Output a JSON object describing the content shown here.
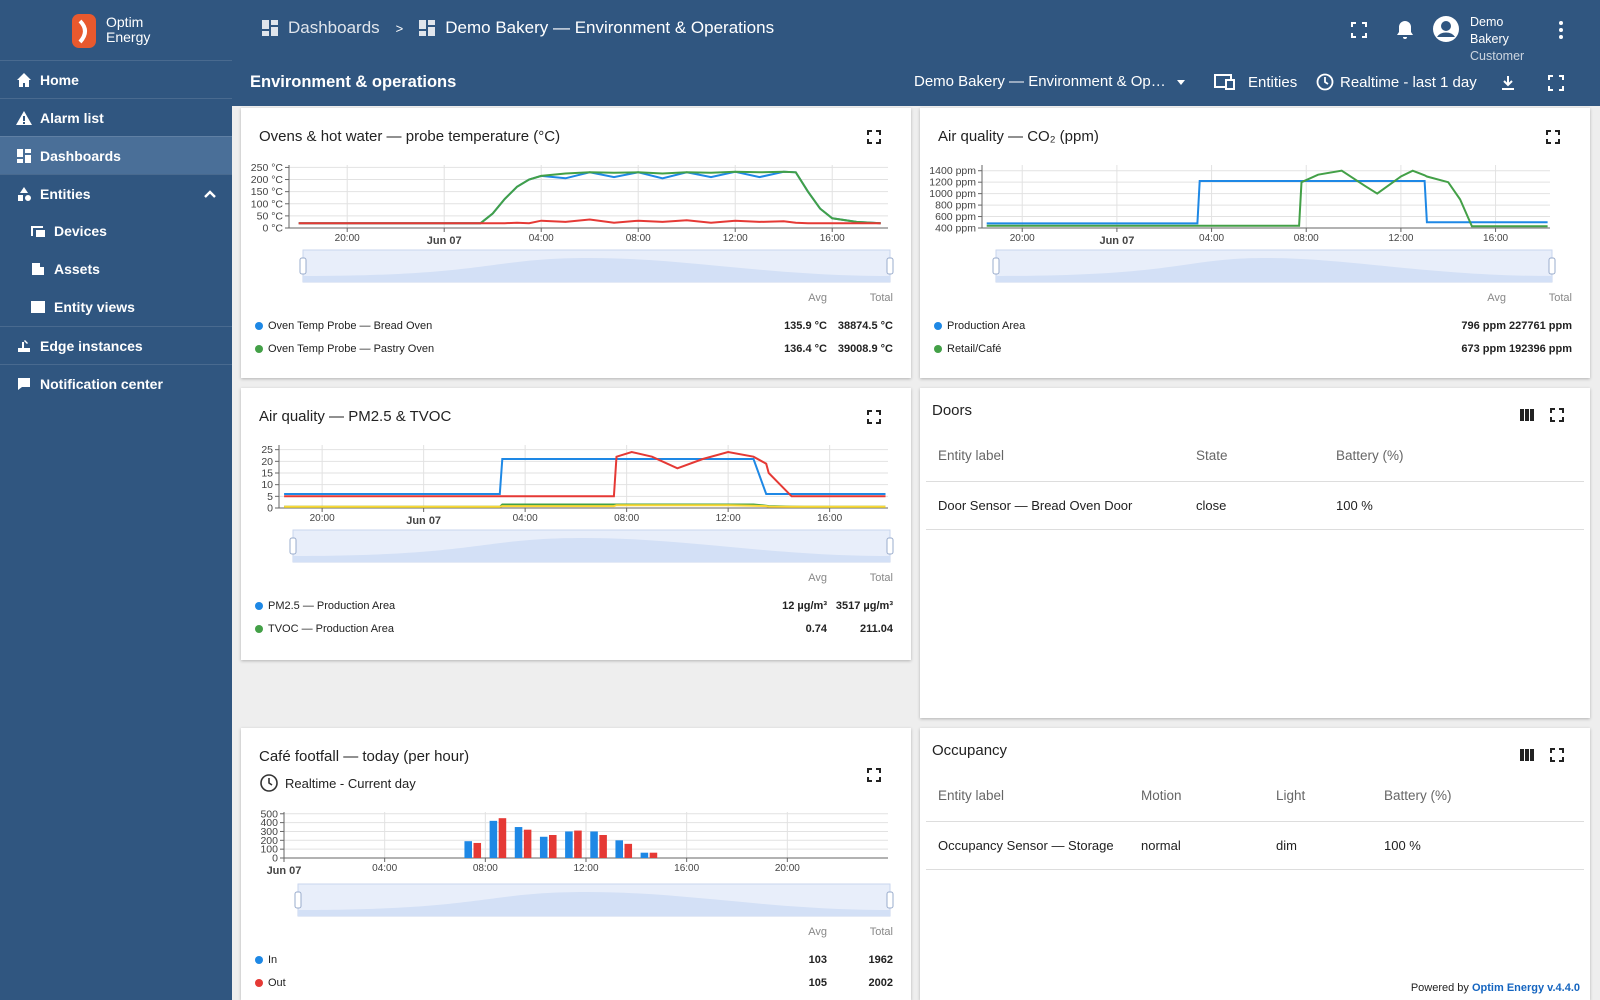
{
  "sidebar": {
    "logo_line1": "Optim",
    "logo_line2": "Energy",
    "menu": [
      "Home",
      "Alarm list",
      "Dashboards",
      "Entities",
      "Devices",
      "Assets",
      "Entity views",
      "Edge instances",
      "Notification center"
    ]
  },
  "header": {
    "breadcrumb": [
      "Dashboards",
      ">",
      "Demo Bakery — Environment & Operations"
    ],
    "user_name": "Demo Bakery",
    "user_role": "Customer"
  },
  "toolbar": {
    "title": "Environment & operations",
    "state": "Demo Bakery — Environment & Op…",
    "entities": "Entities",
    "timewindow": "Realtime - last 1 day"
  },
  "chart_data": [
    {
      "type": "line",
      "title": "Ovens & hot water — probe temperature (°C)",
      "avg_label": "Avg",
      "total_label": "Total",
      "x": [
        -6,
        -4,
        -2,
        0,
        1.5,
        2,
        2.5,
        3,
        3.5,
        4,
        5,
        6,
        7,
        8,
        9,
        10,
        11,
        12,
        13,
        14,
        14.5,
        15,
        15.5,
        16,
        17,
        18
      ],
      "xlim": [
        -6.4,
        18.3
      ],
      "xticks": [
        {
          "value": -4,
          "label": "20:00"
        },
        {
          "value": 0,
          "label": "Jun 07"
        },
        {
          "value": 4,
          "label": "04:00"
        },
        {
          "value": 8,
          "label": "08:00"
        },
        {
          "value": 12,
          "label": "12:00"
        },
        {
          "value": 16,
          "label": "16:00"
        }
      ],
      "ylim": [
        0,
        260
      ],
      "yticks": [
        {
          "value": 0,
          "label": "0 °C"
        },
        {
          "value": 50,
          "label": "50 °C"
        },
        {
          "value": 100,
          "label": "100 °C"
        },
        {
          "value": 150,
          "label": "150 °C"
        },
        {
          "value": 200,
          "label": "200 °C"
        },
        {
          "value": 250,
          "label": "250 °C"
        }
      ],
      "series": [
        {
          "name": "Oven Temp Probe — Bread Oven",
          "color": "#1e88e5",
          "avg": "135.9 °C",
          "total": "38874.5 °C",
          "values": [
            20,
            20,
            20,
            20,
            20,
            60,
            120,
            170,
            200,
            215,
            205,
            230,
            210,
            230,
            205,
            230,
            210,
            232,
            210,
            232,
            230,
            150,
            80,
            40,
            25,
            20
          ]
        },
        {
          "name": "Oven Temp Probe — Pastry Oven",
          "color": "#43a047",
          "avg": "136.4 °C",
          "total": "39008.9 °C",
          "values": [
            20,
            20,
            20,
            20,
            20,
            60,
            120,
            170,
            200,
            215,
            225,
            230,
            228,
            230,
            225,
            230,
            228,
            232,
            230,
            232,
            230,
            150,
            80,
            40,
            25,
            20
          ]
        },
        {
          "color": "#e53935",
          "values": [
            20,
            20,
            20,
            20,
            20,
            20,
            20,
            22,
            20,
            30,
            25,
            35,
            22,
            30,
            25,
            32,
            22,
            30,
            25,
            28,
            22,
            20,
            20,
            20,
            20,
            20
          ]
        }
      ]
    },
    {
      "type": "line",
      "title": "Air quality — CO₂ (ppm)",
      "avg_label": "Avg",
      "total_label": "Total",
      "x": [
        -5.5,
        0,
        3.4,
        3.5,
        7.7,
        7.8,
        8.5,
        9.5,
        10.5,
        11,
        12,
        12.5,
        13,
        13.1,
        14,
        14.5,
        15,
        18.2
      ],
      "xlim": [
        -5.7,
        18.3
      ],
      "xticks": [
        {
          "value": -4,
          "label": "20:00"
        },
        {
          "value": 0,
          "label": "Jun 07"
        },
        {
          "value": 4,
          "label": "04:00"
        },
        {
          "value": 8,
          "label": "08:00"
        },
        {
          "value": 12,
          "label": "12:00"
        },
        {
          "value": 16,
          "label": "16:00"
        }
      ],
      "ylim": [
        400,
        1500
      ],
      "yticks": [
        {
          "value": 400,
          "label": "400 ppm"
        },
        {
          "value": 600,
          "label": "600 ppm"
        },
        {
          "value": 800,
          "label": "800 ppm"
        },
        {
          "value": 1000,
          "label": "1000 ppm"
        },
        {
          "value": 1200,
          "label": "1200 ppm"
        },
        {
          "value": 1400,
          "label": "1400 ppm"
        }
      ],
      "series": [
        {
          "name": "Production Area",
          "color": "#1e88e5",
          "avg": "796 ppm",
          "total": "227761 ppm",
          "values": [
            480,
            480,
            480,
            1220,
            1220,
            1220,
            1220,
            1220,
            1220,
            1220,
            1220,
            1220,
            1220,
            500,
            500,
            500,
            500,
            500
          ]
        },
        {
          "name": "Retail/Café",
          "color": "#43a047",
          "avg": "673 ppm",
          "total": "192396 ppm",
          "values": [
            440,
            440,
            440,
            440,
            440,
            1200,
            1330,
            1400,
            1130,
            1000,
            1300,
            1400,
            1320,
            1300,
            1200,
            900,
            430,
            430
          ]
        }
      ]
    },
    {
      "type": "line",
      "title": "Air quality — PM2.5 & TVOC",
      "avg_label": "Avg",
      "total_label": "Total",
      "x": [
        -5.5,
        0,
        3.0,
        3.1,
        7.5,
        7.6,
        8.2,
        9,
        10,
        11,
        12,
        13,
        13.5,
        13.6,
        14.5,
        15,
        18.2
      ],
      "xlim": [
        -5.7,
        18.3
      ],
      "xticks": [
        {
          "value": -4,
          "label": "20:00"
        },
        {
          "value": 0,
          "label": "Jun 07"
        },
        {
          "value": 4,
          "label": "04:00"
        },
        {
          "value": 8,
          "label": "08:00"
        },
        {
          "value": 12,
          "label": "12:00"
        },
        {
          "value": 16,
          "label": "16:00"
        }
      ],
      "ylim": [
        0,
        27
      ],
      "yticks": [
        0,
        5,
        10,
        15,
        20,
        25
      ],
      "series": [
        {
          "name": "PM2.5 — Production Area",
          "color": "#1e88e5",
          "avg": "12 µg/m³",
          "total": "3517 µg/m³",
          "values": [
            6,
            6,
            6,
            21,
            21,
            21,
            21,
            21,
            21,
            21,
            21,
            21,
            6,
            6,
            6,
            6,
            6
          ]
        },
        {
          "name": "TVOC — Production Area",
          "color": "#43a047",
          "avg": "0.74",
          "total": "211.04",
          "values": [
            0.5,
            0.5,
            0.5,
            1.5,
            1.5,
            1.5,
            1.5,
            1.5,
            1.5,
            1.5,
            1.5,
            1.5,
            1,
            0.8,
            0.6,
            0.5,
            0.5
          ]
        },
        {
          "color": "#e53935",
          "values": [
            5,
            5,
            5,
            5,
            5,
            22,
            24,
            22,
            17,
            21,
            24,
            22,
            19,
            15,
            5,
            5,
            5
          ]
        },
        {
          "color": "#fdd835",
          "values": [
            0.5,
            0.5,
            0.5,
            0.8,
            0.8,
            1.2,
            1.2,
            1.2,
            1.2,
            1.2,
            1.2,
            1,
            0.8,
            0.6,
            0.5,
            0.5,
            0.5
          ]
        }
      ]
    },
    {
      "type": "bar",
      "title": "Café footfall — today (per hour)",
      "timewindow": "Realtime - Current day",
      "avg_label": "Avg",
      "total_label": "Total",
      "x": [
        7,
        8,
        9,
        10,
        11,
        12,
        13,
        14
      ],
      "xlim": [
        0,
        24
      ],
      "xticks": [
        {
          "value": 0,
          "label": "Jun 07"
        },
        {
          "value": 4,
          "label": "04:00"
        },
        {
          "value": 8,
          "label": "08:00"
        },
        {
          "value": 12,
          "label": "12:00"
        },
        {
          "value": 16,
          "label": "16:00"
        },
        {
          "value": 20,
          "label": "20:00"
        }
      ],
      "ylim": [
        0,
        520
      ],
      "yticks": [
        0,
        100,
        200,
        300,
        400,
        500
      ],
      "series": [
        {
          "name": "In",
          "color": "#1e88e5",
          "avg": "103",
          "total": "1962",
          "values": [
            190,
            420,
            350,
            240,
            300,
            300,
            200,
            60
          ]
        },
        {
          "name": "Out",
          "color": "#e53935",
          "avg": "105",
          "total": "2002",
          "values": [
            170,
            450,
            320,
            260,
            310,
            260,
            160,
            60
          ]
        }
      ]
    }
  ],
  "doors": {
    "title": "Doors",
    "columns": [
      "Entity label",
      "State",
      "Battery (%)"
    ],
    "rows": [
      [
        "Door Sensor — Bread Oven Door",
        "close",
        "100 %"
      ]
    ]
  },
  "occupancy": {
    "title": "Occupancy",
    "columns": [
      "Entity label",
      "Motion",
      "Light",
      "Battery (%)"
    ],
    "rows": [
      [
        "Occupancy Sensor — Storage",
        "normal",
        "dim",
        "100 %"
      ]
    ]
  },
  "footer": {
    "powered": "Powered by",
    "brand": "Optim Energy v.4.4.0"
  }
}
